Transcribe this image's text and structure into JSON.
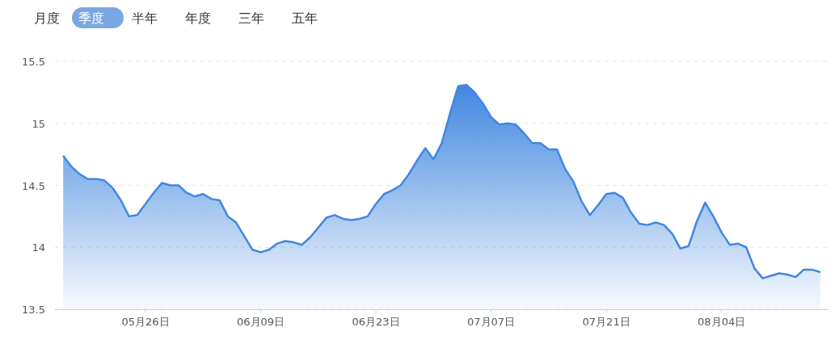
{
  "chart_data": {
    "type": "area",
    "annotations": [
      "月度",
      "季度",
      "半年",
      "年度",
      "三年",
      "五年"
    ],
    "x": [
      "--05-16",
      "--05-17",
      "--05-18",
      "--05-19",
      "--05-20",
      "--05-21",
      "--05-22",
      "--05-23",
      "--05-24",
      "--05-25",
      "--05-26",
      "--05-27",
      "--05-28",
      "--05-29",
      "--05-30",
      "--05-31",
      "--06-01",
      "--06-02",
      "--06-03",
      "--06-04",
      "--06-05",
      "--06-06",
      "--06-07",
      "--06-08",
      "--06-09",
      "--06-10",
      "--06-11",
      "--06-12",
      "--06-13",
      "--06-14",
      "--06-15",
      "--06-16",
      "--06-17",
      "--06-18",
      "--06-19",
      "--06-20",
      "--06-21",
      "--06-22",
      "--06-23",
      "--06-24",
      "--06-25",
      "--06-26",
      "--06-27",
      "--06-28",
      "--06-29",
      "--06-30",
      "--07-01",
      "--07-02",
      "--07-03",
      "--07-04",
      "--07-05",
      "--07-06",
      "--07-07",
      "--07-08",
      "--07-09",
      "--07-10",
      "--07-11",
      "--07-12",
      "--07-13",
      "--07-14",
      "--07-15",
      "--07-16",
      "--07-17",
      "--07-18",
      "--07-19",
      "--07-20",
      "--07-21",
      "--07-22",
      "--07-23",
      "--07-24",
      "--07-25",
      "--07-26",
      "--07-27",
      "--07-28",
      "--07-29",
      "--07-30",
      "--07-31",
      "--08-01",
      "--08-02",
      "--08-03",
      "--08-04",
      "--08-05",
      "--08-06",
      "--08-07",
      "--08-08",
      "--08-09",
      "--08-10",
      "--08-11",
      "--08-12",
      "--08-13",
      "--08-14",
      "--08-15",
      "--08-16"
    ],
    "series": [
      {
        "color": "#4187e0",
        "values": [
          14.74,
          14.65,
          14.59,
          14.55,
          14.55,
          14.54,
          14.48,
          14.38,
          14.25,
          14.26,
          14.35,
          14.44,
          14.52,
          14.5,
          14.5,
          14.44,
          14.41,
          14.43,
          14.39,
          14.38,
          14.25,
          14.2,
          14.09,
          13.98,
          13.96,
          13.98,
          14.03,
          14.05,
          14.04,
          14.02,
          14.08,
          14.16,
          14.24,
          14.26,
          14.23,
          14.22,
          14.23,
          14.25,
          14.35,
          14.43,
          14.46,
          14.5,
          14.59,
          14.7,
          14.8,
          14.71,
          14.84,
          15.08,
          15.3,
          15.31,
          15.25,
          15.16,
          15.05,
          14.99,
          15.0,
          14.99,
          14.92,
          14.84,
          14.84,
          14.79,
          14.79,
          14.63,
          14.53,
          14.37,
          14.26,
          14.34,
          14.43,
          14.44,
          14.4,
          14.28,
          14.19,
          14.18,
          14.2,
          14.18,
          14.11,
          13.99,
          14.01,
          14.21,
          14.36,
          14.25,
          14.12,
          14.02,
          14.03,
          14.0,
          13.83,
          13.75,
          13.77,
          13.79,
          13.78,
          13.76,
          13.82,
          13.82,
          13.8
        ]
      }
    ],
    "xlim": [
      "--05-15",
      "--08-17"
    ],
    "xticks": [
      {
        "value": "--05-26",
        "label": "05月26日"
      },
      {
        "value": "--06-09",
        "label": "06月09日"
      },
      {
        "value": "--06-23",
        "label": "06月23日"
      },
      {
        "value": "--07-07",
        "label": "07月07日"
      },
      {
        "value": "--07-21",
        "label": "07月21日"
      },
      {
        "value": "--08-04",
        "label": "08月04日"
      }
    ],
    "ylim": [
      13.5,
      15.5
    ],
    "yticks": [
      13.5,
      {
        "value": 15,
        "label": "15"
      },
      14.5,
      {
        "value": 14,
        "label": "14"
      },
      15.5
    ],
    "grid": "y"
  }
}
